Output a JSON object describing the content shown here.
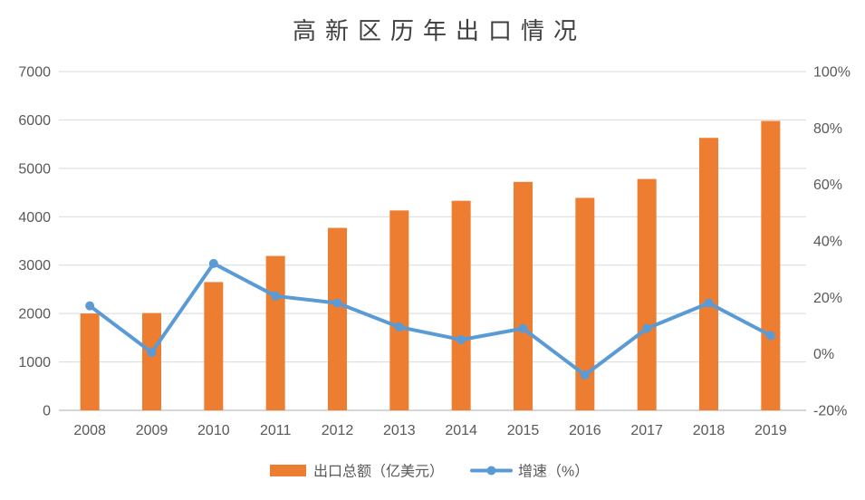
{
  "title": "高新区历年出口情况",
  "legend": {
    "bar_label": "出口总额（亿美元）",
    "line_label": "增速（%）"
  },
  "colors": {
    "bar": "#ED7D31",
    "line": "#5B9BD5",
    "grid": "#D9D9D9",
    "axis_line": "#C9C9C9",
    "axis_text": "#595959",
    "title_text": "#404040",
    "background": "#FFFFFF"
  },
  "chart_data": {
    "type": "bar+line",
    "title": "高新区历年出口情况",
    "categories": [
      "2008",
      "2009",
      "2010",
      "2011",
      "2012",
      "2013",
      "2014",
      "2015",
      "2016",
      "2017",
      "2018",
      "2019"
    ],
    "series": [
      {
        "name": "出口总额（亿美元）",
        "type": "bar",
        "axis": "left",
        "color": "#ED7D31",
        "values": [
          2000,
          2010,
          2650,
          3190,
          3770,
          4130,
          4330,
          4720,
          4390,
          4780,
          5630,
          5980
        ]
      },
      {
        "name": "增速（%）",
        "type": "line",
        "axis": "right",
        "color": "#5B9BD5",
        "values": [
          17,
          0.5,
          32,
          20.5,
          18,
          9.5,
          5,
          9,
          -7.5,
          9,
          18,
          6.5
        ]
      }
    ],
    "left_axis": {
      "min": 0,
      "max": 7000,
      "step": 1000,
      "tick_labels": [
        "0",
        "1000",
        "2000",
        "3000",
        "4000",
        "5000",
        "6000",
        "7000"
      ]
    },
    "right_axis": {
      "min": -20,
      "max": 100,
      "step": 20,
      "tick_labels": [
        "-20%",
        "0%",
        "20%",
        "40%",
        "60%",
        "80%",
        "100%"
      ]
    },
    "grid": true,
    "legend_position": "bottom"
  }
}
